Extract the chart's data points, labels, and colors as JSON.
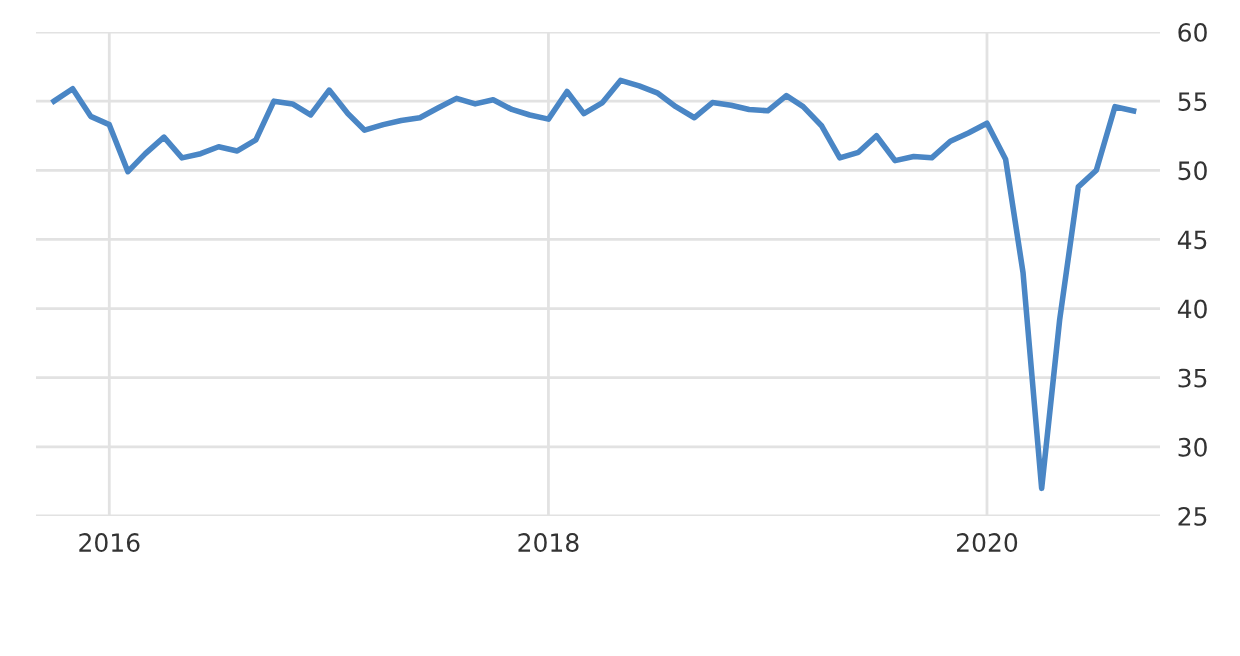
{
  "chart_data": {
    "type": "line",
    "color": "#4a86c5",
    "x": [
      "2015-10",
      "2015-11",
      "2015-12",
      "2016-01",
      "2016-02",
      "2016-03",
      "2016-04",
      "2016-05",
      "2016-06",
      "2016-07",
      "2016-08",
      "2016-09",
      "2016-10",
      "2016-11",
      "2016-12",
      "2017-01",
      "2017-02",
      "2017-03",
      "2017-04",
      "2017-05",
      "2017-06",
      "2017-07",
      "2017-08",
      "2017-09",
      "2017-10",
      "2017-11",
      "2017-12",
      "2018-01",
      "2018-02",
      "2018-03",
      "2018-04",
      "2018-05",
      "2018-06",
      "2018-07",
      "2018-08",
      "2018-09",
      "2018-10",
      "2018-11",
      "2018-12",
      "2019-01",
      "2019-02",
      "2019-03",
      "2019-04",
      "2019-05",
      "2019-06",
      "2019-07",
      "2019-08",
      "2019-09",
      "2019-10",
      "2019-11",
      "2019-12",
      "2020-01",
      "2020-02",
      "2020-03",
      "2020-04",
      "2020-05",
      "2020-06",
      "2020-07",
      "2020-08",
      "2020-09"
    ],
    "values": [
      55.0,
      55.9,
      53.9,
      53.3,
      49.9,
      51.2,
      52.4,
      50.9,
      51.2,
      51.7,
      51.4,
      52.2,
      55.0,
      54.8,
      54.0,
      55.8,
      54.1,
      52.9,
      53.3,
      53.6,
      53.8,
      54.5,
      55.2,
      54.8,
      55.1,
      54.4,
      54.0,
      53.7,
      55.7,
      54.1,
      54.9,
      56.5,
      56.1,
      55.6,
      54.6,
      53.8,
      54.9,
      54.7,
      54.4,
      54.3,
      55.4,
      54.6,
      53.2,
      50.9,
      51.3,
      52.5,
      50.7,
      51.0,
      50.9,
      52.1,
      52.7,
      53.4,
      50.8,
      42.6,
      27.0,
      39.2,
      48.8,
      50.0,
      54.6,
      54.3
    ],
    "xlim": [
      "2015-09-01",
      "2020-10-15"
    ],
    "xticks": [
      {
        "value": "2016-01-01",
        "label": "2016"
      },
      {
        "value": "2018-01-01",
        "label": "2018"
      },
      {
        "value": "2020-01-01",
        "label": "2020"
      }
    ],
    "ylim": [
      25,
      60
    ],
    "yticks": [
      25,
      30,
      35,
      40,
      45,
      50,
      55,
      60
    ],
    "grid": true,
    "marker": "none",
    "line_style": "solid"
  }
}
